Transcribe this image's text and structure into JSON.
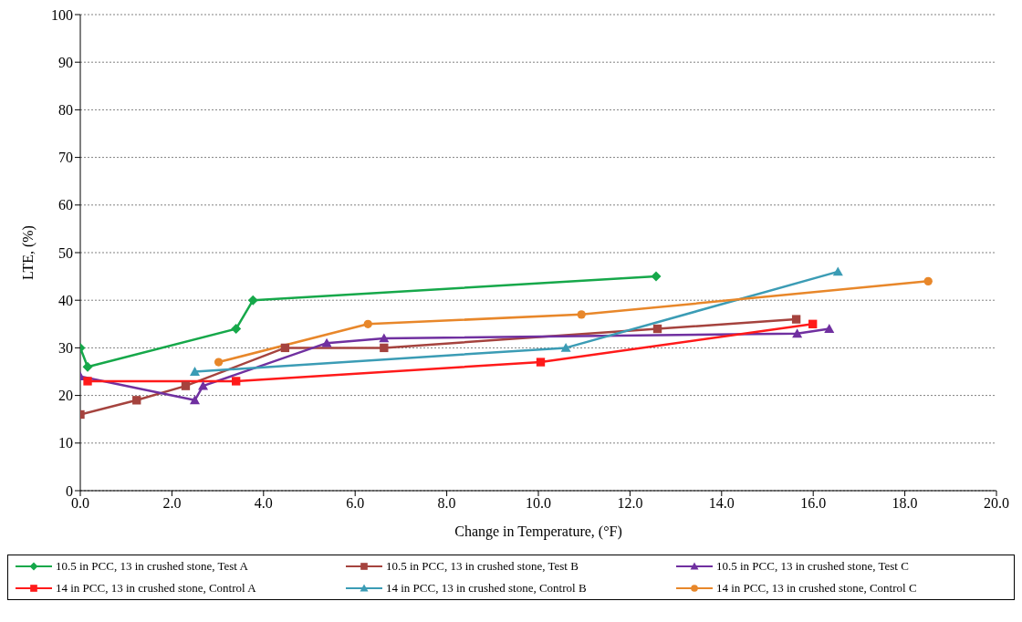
{
  "chart_data": {
    "type": "line",
    "xlabel": "Change in Temperature, (°F)",
    "ylabel": "LTE, (%)",
    "xlim": [
      0,
      20
    ],
    "xticks": [
      {
        "value": 0,
        "label": "0.0"
      },
      {
        "value": 2,
        "label": "2.0"
      },
      {
        "value": 4,
        "label": "4.0"
      },
      {
        "value": 6,
        "label": "6.0"
      },
      {
        "value": 8,
        "label": "8.0"
      },
      {
        "value": 10,
        "label": "10.0"
      },
      {
        "value": 12,
        "label": "12.0"
      },
      {
        "value": 14,
        "label": "14.0"
      },
      {
        "value": 16,
        "label": "16.0"
      },
      {
        "value": 18,
        "label": "18.0"
      },
      {
        "value": 20,
        "label": "20.0"
      }
    ],
    "ylim": [
      0,
      100
    ],
    "yticks": [
      0,
      10,
      20,
      30,
      40,
      50,
      60,
      70,
      80,
      90,
      100
    ],
    "grid": "y",
    "legend": "bottom",
    "series": [
      {
        "name": "10.5 in PCC, 13 in crushed stone, Test A",
        "color": "#16a84a",
        "marker": "diamond",
        "x": [
          0,
          0.16,
          3.4,
          3.77,
          12.57
        ],
        "values": [
          30,
          26,
          34,
          40,
          45
        ]
      },
      {
        "name": "10.5 in PCC, 13 in crushed stone, Test B",
        "color": "#a5433e",
        "marker": "square",
        "x": [
          0,
          1.23,
          2.3,
          4.47,
          6.63,
          12.6,
          15.63
        ],
        "values": [
          16,
          19,
          22,
          30,
          30,
          34,
          36
        ]
      },
      {
        "name": "10.5 in PCC, 13 in crushed stone, Test C",
        "color": "#7030a0",
        "marker": "triangle",
        "x": [
          0,
          2.5,
          2.68,
          5.38,
          6.63,
          15.65,
          16.35
        ],
        "values": [
          24,
          19,
          22,
          31,
          32,
          33,
          34
        ]
      },
      {
        "name": "14 in PCC, 13 in crushed stone, Control A",
        "color": "#ff1a1a",
        "marker": "square",
        "x": [
          0.16,
          3.4,
          10.05,
          15.99
        ],
        "values": [
          23,
          23,
          27,
          35
        ]
      },
      {
        "name": "14 in PCC, 13 in crushed stone, Control B",
        "color": "#3b9cb5",
        "marker": "triangle",
        "x": [
          2.5,
          10.6,
          16.54
        ],
        "values": [
          25,
          30,
          46
        ]
      },
      {
        "name": "14 in PCC, 13 in crushed stone, Control C",
        "color": "#e8872a",
        "marker": "circle",
        "x": [
          3.02,
          6.28,
          10.94,
          18.51
        ],
        "values": [
          27,
          35,
          37,
          44
        ]
      }
    ]
  }
}
